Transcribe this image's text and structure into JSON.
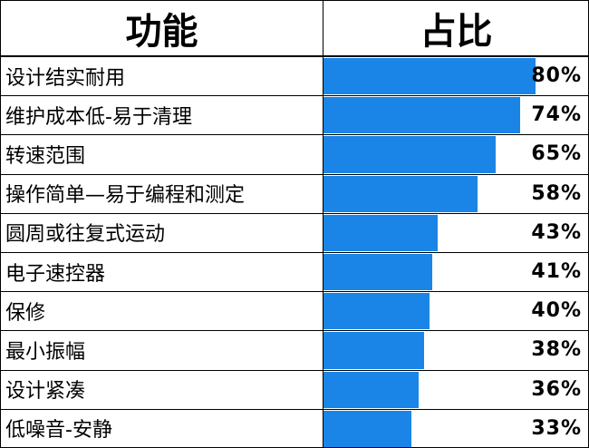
{
  "header": {
    "col1": "功能",
    "col2": "占比"
  },
  "colors": {
    "bar": "#1a85e6",
    "grid": "#000000"
  },
  "chart_data": {
    "type": "bar",
    "orientation": "horizontal",
    "categories": [
      "设计结实耐用",
      "维护成本低-易于清理",
      "转速范围",
      "操作简单—易于编程和测定",
      "圆周或往复式运动",
      "电子速控器",
      "保修",
      "最小振幅",
      "设计紧凑",
      "低噪音-安静"
    ],
    "values": [
      80,
      74,
      65,
      58,
      43,
      41,
      40,
      38,
      36,
      33
    ],
    "value_labels": [
      "80%",
      "74%",
      "65%",
      "58%",
      "43%",
      "41%",
      "40%",
      "38%",
      "36%",
      "33%"
    ],
    "xlim": [
      0,
      100
    ]
  }
}
